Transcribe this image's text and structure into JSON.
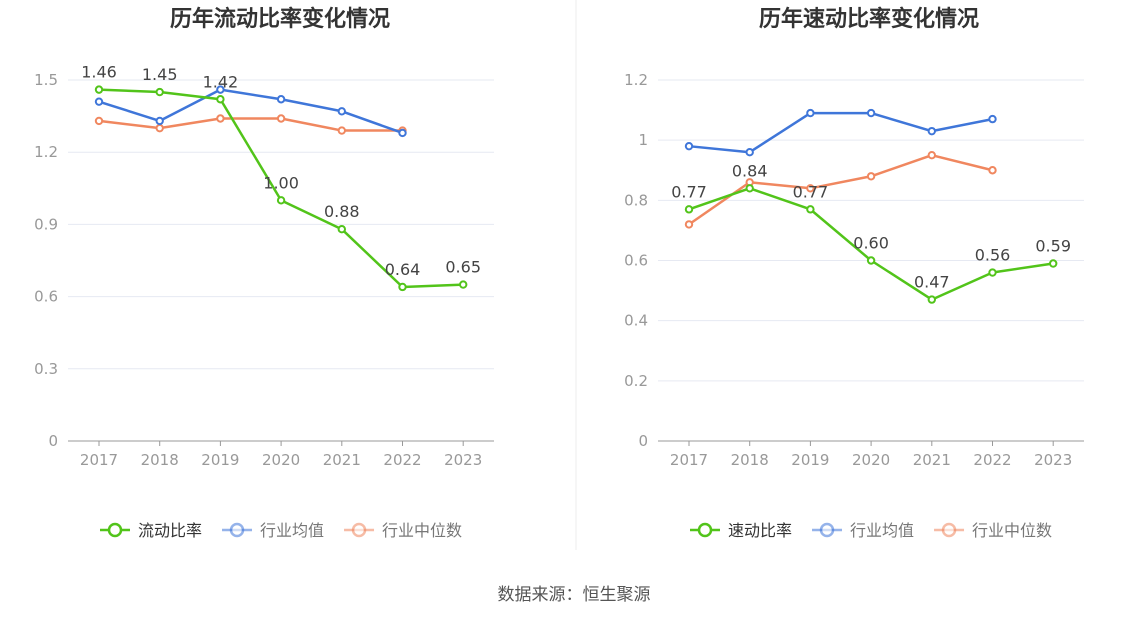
{
  "source_text": "数据来源：恒生聚源",
  "chart_data": [
    {
      "type": "line",
      "title": "历年流动比率变化情况",
      "categories": [
        "2017",
        "2018",
        "2019",
        "2020",
        "2021",
        "2022",
        "2023"
      ],
      "ylim": [
        0,
        1.5
      ],
      "yticks": [
        "0",
        "0.3",
        "0.6",
        "0.9",
        "1.2",
        "1.5"
      ],
      "ytick_values": [
        0,
        0.3,
        0.6,
        0.9,
        1.2,
        1.5
      ],
      "xlabel": "",
      "ylabel": "",
      "grid": true,
      "legend_position": "bottom-center",
      "series": [
        {
          "name": "流动比率",
          "color": "#52c41a",
          "values": [
            1.46,
            1.45,
            1.42,
            1.0,
            0.88,
            0.64,
            0.65
          ],
          "labels": [
            "1.46",
            "1.45",
            "1.42",
            "1.00",
            "0.88",
            "0.64",
            "0.65"
          ]
        },
        {
          "name": "行业均值",
          "color": "#3f76d9",
          "values": [
            1.41,
            1.33,
            1.46,
            1.42,
            1.37,
            1.28,
            null
          ]
        },
        {
          "name": "行业中位数",
          "color": "#f0875f",
          "values": [
            1.33,
            1.3,
            1.34,
            1.34,
            1.29,
            1.29,
            null
          ]
        }
      ]
    },
    {
      "type": "line",
      "title": "历年速动比率变化情况",
      "categories": [
        "2017",
        "2018",
        "2019",
        "2020",
        "2021",
        "2022",
        "2023"
      ],
      "ylim": [
        0,
        1.2
      ],
      "yticks": [
        "0",
        "0.2",
        "0.4",
        "0.6",
        "0.8",
        "1",
        "1.2"
      ],
      "ytick_values": [
        0,
        0.2,
        0.4,
        0.6,
        0.8,
        1.0,
        1.2
      ],
      "xlabel": "",
      "ylabel": "",
      "grid": true,
      "legend_position": "bottom-center",
      "series": [
        {
          "name": "速动比率",
          "color": "#52c41a",
          "values": [
            0.77,
            0.84,
            0.77,
            0.6,
            0.47,
            0.56,
            0.59
          ],
          "labels": [
            "0.77",
            "0.84",
            "0.77",
            "0.60",
            "0.47",
            "0.56",
            "0.59"
          ]
        },
        {
          "name": "行业均值",
          "color": "#3f76d9",
          "values": [
            0.98,
            0.96,
            1.09,
            1.09,
            1.03,
            1.07,
            null
          ]
        },
        {
          "name": "行业中位数",
          "color": "#f0875f",
          "values": [
            0.72,
            0.86,
            0.84,
            0.88,
            0.95,
            0.9,
            null
          ]
        }
      ]
    }
  ]
}
